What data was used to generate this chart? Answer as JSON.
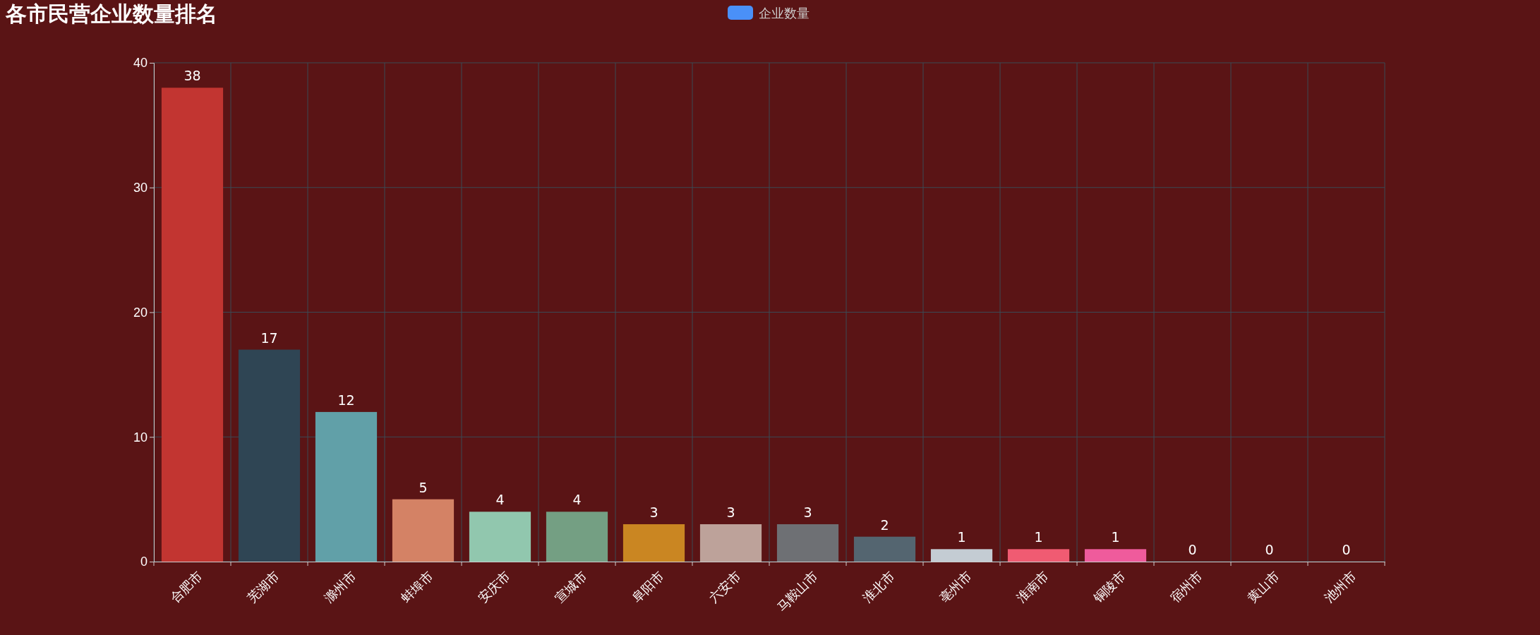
{
  "chart_data": {
    "type": "bar",
    "title": "各市民营企业数量排名",
    "categories": [
      "合肥市",
      "芜湖市",
      "滁州市",
      "蚌埠市",
      "安庆市",
      "宣城市",
      "阜阳市",
      "六安市",
      "马鞍山市",
      "淮北市",
      "亳州市",
      "淮南市",
      "铜陵市",
      "宿州市",
      "黄山市",
      "池州市"
    ],
    "series": [
      {
        "name": "企业数量",
        "color": "#4a90f8",
        "values": [
          38,
          17,
          12,
          5,
          4,
          4,
          3,
          3,
          3,
          2,
          1,
          1,
          1,
          0,
          0,
          0
        ],
        "colors": [
          "#c23531",
          "#2f4554",
          "#61a0a8",
          "#d48265",
          "#91c7ae",
          "#749f83",
          "#ca8622",
          "#bda29a",
          "#6e7074",
          "#546570",
          "#c4ccd3",
          "#f05b72",
          "#ef5b9c",
          "#f47920",
          "#905a3d",
          "#fab27b"
        ]
      }
    ],
    "ylim": [
      0,
      40
    ],
    "yticks": [
      0,
      10,
      20,
      30,
      40
    ],
    "grid": true,
    "legend": "top",
    "data_labels": true
  }
}
